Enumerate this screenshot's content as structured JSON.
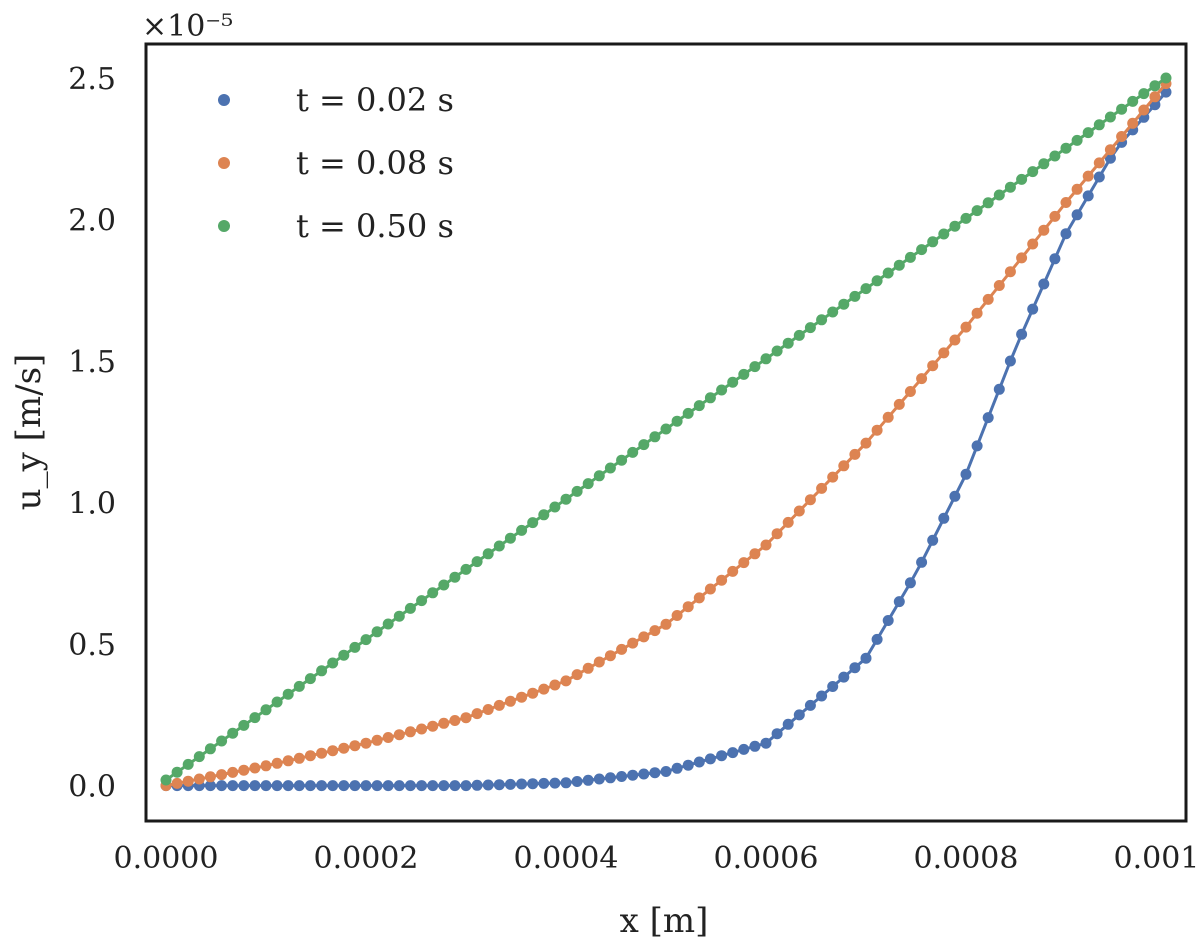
{
  "chart_data": {
    "type": "scatter",
    "title": "",
    "xlabel": "x [m]",
    "ylabel": "u_y [m/s]",
    "y_scale_note": "×10⁻⁵",
    "xlim": [
      -2e-05,
      0.00102
    ],
    "ylim": [
      -1.25e-06,
      2.62e-05
    ],
    "x_ticks": [
      0.0,
      0.0002,
      0.0004,
      0.0006,
      0.0008,
      0.001
    ],
    "x_tick_labels": [
      "0.0000",
      "0.0002",
      "0.0004",
      "0.0006",
      "0.0008",
      "0.0010"
    ],
    "y_ticks": [
      0.0,
      5e-06,
      1e-05,
      1.5e-05,
      2e-05,
      2.5e-05
    ],
    "y_tick_labels": [
      "0.0",
      "0.5",
      "1.0",
      "1.5",
      "2.0",
      "2.5"
    ],
    "grid": false,
    "legend_position": "top-left",
    "x_range": [
      0.0,
      0.001
    ],
    "n_points": 91,
    "series": [
      {
        "name": "t = 0.02 s",
        "color": "#4c72b0",
        "x": [
          0.0,
          0.0001,
          0.0002,
          0.0003,
          0.0004,
          0.0005,
          0.0006,
          0.0007,
          0.00075,
          0.0008,
          0.00085,
          0.0009,
          0.00095,
          0.001
        ],
        "y": [
          0.0,
          0.0,
          0.0,
          0.0,
          1e-07,
          5e-07,
          1.5e-06,
          4.5e-06,
          7.5e-06,
          1.1e-05,
          1.55e-05,
          1.95e-05,
          2.25e-05,
          2.45e-05
        ]
      },
      {
        "name": "t = 0.08 s",
        "color": "#dd8452",
        "x": [
          0.0,
          0.0001,
          0.0002,
          0.0003,
          0.0004,
          0.0005,
          0.0006,
          0.0007,
          0.0008,
          0.0009,
          0.001
        ],
        "y": [
          0.0,
          7e-07,
          1.5e-06,
          2.4e-06,
          3.7e-06,
          5.7e-06,
          8.5e-06,
          1.21e-05,
          1.62e-05,
          2.06e-05,
          2.48e-05
        ]
      },
      {
        "name": "t = 0.50 s",
        "color": "#55a868",
        "x": [
          0.0,
          0.001
        ],
        "y": [
          2e-07,
          2.5e-05
        ]
      }
    ]
  }
}
